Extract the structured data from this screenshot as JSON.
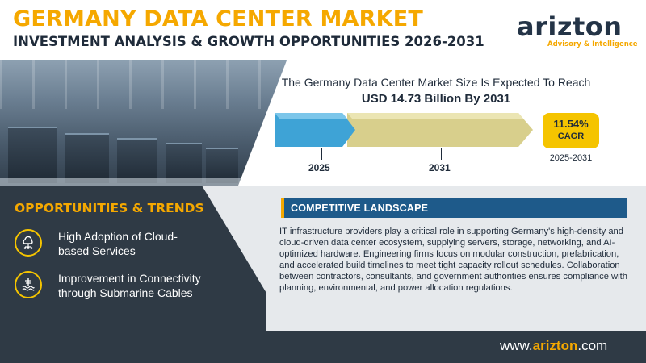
{
  "header": {
    "title": "GERMANY DATA CENTER MARKET",
    "subtitle": "INVESTMENT ANALYSIS & GROWTH OPPORTUNITIES 2026-2031"
  },
  "logo": {
    "name": "arizton",
    "tagline": "Advisory & Intelligence"
  },
  "market": {
    "headline": "The Germany Data Center Market Size Is Expected To Reach",
    "value_line": "USD 14.73 Billion By 2031",
    "start_year": "2025",
    "end_year": "2031",
    "cagr_value": "11.54%",
    "cagr_label": "CAGR",
    "cagr_period": "2025-2031"
  },
  "opportunities": {
    "title": "OPPORTUNITIES & TRENDS",
    "items": [
      {
        "line1": "High Adoption of Cloud-",
        "line2": "based Services",
        "icon": "cloud-network-icon"
      },
      {
        "line1": "Improvement in Connectivity",
        "line2": "through Submarine Cables",
        "icon": "submarine-cable-icon"
      }
    ]
  },
  "competitive": {
    "title": "COMPETITIVE LANDSCAPE",
    "body": "IT infrastructure providers play a critical role in supporting Germany's high-density and cloud-driven data center ecosystem, supplying servers, storage, networking, and AI-optimized hardware. Engineering firms focus on modular construction, prefabrication, and accelerated build timelines to meet tight capacity rollout schedules. Collaboration between contractors, consultants, and government authorities ensures compliance with planning, environmental, and power allocation regulations."
  },
  "footer": {
    "url_prefix": "www.",
    "url_brand": "arizton",
    "url_suffix": ".com"
  },
  "colors": {
    "accent": "#f5a800",
    "navy": "#1f2b3a",
    "panel_dark": "#2f3a45",
    "banner_blue": "#1e5a8a",
    "bar_2025": "#3ea3d6",
    "bar_2031": "#d8cf8c"
  }
}
